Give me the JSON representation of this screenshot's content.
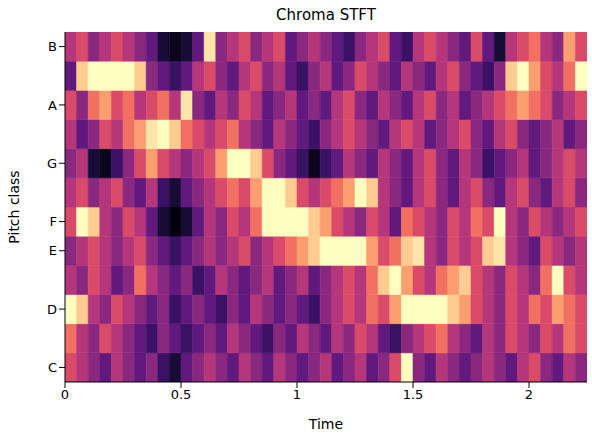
{
  "chart_data": {
    "type": "heatmap",
    "title": "Chroma STFT",
    "xlabel": "Time",
    "ylabel": "Pitch class",
    "color": "magma",
    "color_range": [
      0,
      1
    ],
    "x": [
      0,
      0.05,
      0.1,
      0.15,
      0.2,
      0.25,
      0.3,
      0.35,
      0.4,
      0.45,
      0.5,
      0.55,
      0.6,
      0.65,
      0.7,
      0.75,
      0.8,
      0.85,
      0.9,
      0.95,
      1,
      1.05,
      1.1,
      1.15,
      1.2,
      1.25,
      1.3,
      1.35,
      1.4,
      1.45,
      1.5,
      1.55,
      1.6,
      1.65,
      1.7,
      1.75,
      1.8,
      1.85,
      1.9,
      1.95,
      2,
      2.05,
      2.1,
      2.15,
      2.2
    ],
    "y": [
      0,
      1,
      2,
      3,
      4,
      5,
      6,
      7,
      8,
      9,
      10,
      11
    ],
    "xlim": [
      0,
      2.25
    ],
    "ylim": [
      -0.5,
      11.5
    ],
    "xticks": [
      0,
      0.5,
      1,
      1.5,
      2
    ],
    "yticks": [
      {
        "value": 0,
        "label": "C"
      },
      {
        "value": 2,
        "label": "D"
      },
      {
        "value": 4,
        "label": "E"
      },
      {
        "value": 5,
        "label": "F"
      },
      {
        "value": 7,
        "label": "G"
      },
      {
        "value": 9,
        "label": "A"
      },
      {
        "value": 11,
        "label": "B"
      }
    ],
    "cells": [
      [
        0.6,
        0.5,
        0.4,
        0.3,
        0.5,
        0.4,
        0.3,
        0.4,
        0.2,
        0.1,
        0.3,
        0.4,
        0.5,
        0.4,
        0.3,
        0.5,
        0.4,
        0.3,
        0.5,
        0.4,
        0.3,
        0.4,
        0.5,
        0.3,
        0.4,
        0.5,
        0.3,
        0.4,
        0.6,
        1,
        0.4,
        0.3,
        0.5,
        0.4,
        0.3,
        0.4,
        0.5,
        0.4,
        0.3,
        0.5,
        0.6,
        0.4,
        0.3,
        0.5,
        0.4
      ],
      [
        0.7,
        0.5,
        0.4,
        0.6,
        0.5,
        0.4,
        0.3,
        0.2,
        0.4,
        0.3,
        0.2,
        0.3,
        0.4,
        0.3,
        0.5,
        0.4,
        0.3,
        0.2,
        0.4,
        0.3,
        0.5,
        0.4,
        0.3,
        0.5,
        0.4,
        0.6,
        0.5,
        0.3,
        0.2,
        0.4,
        0.5,
        0.6,
        0.7,
        0.5,
        0.4,
        0.3,
        0.5,
        0.4,
        0.6,
        0.5,
        0.4,
        0.6,
        0.5,
        0.7,
        0.6
      ],
      [
        1,
        0.9,
        0.5,
        0.4,
        0.6,
        0.5,
        0.4,
        0.3,
        0.4,
        0.2,
        0.3,
        0.4,
        0.3,
        0.2,
        0.4,
        0.3,
        0.5,
        0.4,
        0.3,
        0.4,
        0.3,
        0.2,
        0.4,
        0.5,
        0.6,
        0.5,
        0.7,
        0.6,
        0.8,
        1,
        1,
        1,
        1,
        0.9,
        0.8,
        0.6,
        0.5,
        0.4,
        0.6,
        0.5,
        0.7,
        0.6,
        0.8,
        0.7,
        0.6
      ],
      [
        0.5,
        0.4,
        0.6,
        0.5,
        0.3,
        0.4,
        0.7,
        0.5,
        0.4,
        0.3,
        0.4,
        0.2,
        0.3,
        0.5,
        0.4,
        0.3,
        0.4,
        0.5,
        0.3,
        0.4,
        0.5,
        0.3,
        0.4,
        0.5,
        0.6,
        0.5,
        0.7,
        0.9,
        1,
        0.8,
        0.6,
        0.5,
        0.7,
        0.8,
        0.9,
        0.6,
        0.5,
        0.4,
        0.6,
        0.5,
        0.4,
        0.7,
        1,
        0.6,
        0.5
      ],
      [
        0.4,
        0.5,
        0.6,
        0.5,
        0.4,
        0.5,
        0.6,
        0.4,
        0.3,
        0.2,
        0.3,
        0.4,
        0.5,
        0.4,
        0.5,
        0.6,
        0.4,
        0.5,
        0.6,
        0.7,
        0.8,
        0.9,
        1,
        1,
        1,
        1,
        0.8,
        0.6,
        0.7,
        0.9,
        0.95,
        0.5,
        0.4,
        0.6,
        0.5,
        0.6,
        0.9,
        0.95,
        0.5,
        0.4,
        0.3,
        0.6,
        0.5,
        0.4,
        0.5
      ],
      [
        0.6,
        1,
        0.9,
        0.5,
        0.4,
        0.6,
        0.5,
        0.3,
        0.1,
        0.02,
        0.1,
        0.3,
        0.5,
        0.4,
        0.6,
        0.5,
        0.7,
        1,
        1,
        1,
        1,
        0.9,
        0.8,
        0.6,
        0.5,
        0.4,
        0.6,
        0.5,
        0.3,
        0.7,
        0.6,
        0.5,
        0.4,
        0.6,
        0.5,
        0.7,
        0.6,
        1,
        0.5,
        0.4,
        0.6,
        0.5,
        0.4,
        0.5,
        0.6
      ],
      [
        0.5,
        0.6,
        0.4,
        0.5,
        0.6,
        0.4,
        0.3,
        0.5,
        0.2,
        0.1,
        0.3,
        0.4,
        0.5,
        0.6,
        0.7,
        0.6,
        0.8,
        1,
        1,
        0.9,
        0.6,
        0.5,
        0.6,
        0.7,
        0.8,
        1,
        0.9,
        0.5,
        0.4,
        0.3,
        0.5,
        0.6,
        0.4,
        0.3,
        0.5,
        0.6,
        0.4,
        0.3,
        0.5,
        0.6,
        0.4,
        0.3,
        0.5,
        0.6,
        0.4
      ],
      [
        0.4,
        0.5,
        0.1,
        0.05,
        0.2,
        0.4,
        0.6,
        0.8,
        0.6,
        0.5,
        0.4,
        0.5,
        0.6,
        0.8,
        1,
        1,
        0.9,
        0.6,
        0.4,
        0.3,
        0.2,
        0.05,
        0.2,
        0.3,
        0.5,
        0.4,
        0.3,
        0.5,
        0.4,
        0.3,
        0.5,
        0.6,
        0.4,
        0.3,
        0.5,
        0.4,
        0.2,
        0.3,
        0.4,
        0.5,
        0.3,
        0.4,
        0.5,
        0.6,
        0.5
      ],
      [
        0.5,
        0.3,
        0.4,
        0.6,
        0.5,
        0.7,
        0.8,
        0.95,
        1,
        0.9,
        0.7,
        0.6,
        0.5,
        0.6,
        0.7,
        0.5,
        0.4,
        0.3,
        0.5,
        0.4,
        0.3,
        0.2,
        0.4,
        0.5,
        0.6,
        0.5,
        0.4,
        0.3,
        0.5,
        0.6,
        0.5,
        0.3,
        0.4,
        0.5,
        0.6,
        0.4,
        0.3,
        0.5,
        0.6,
        0.4,
        0.3,
        0.4,
        0.5,
        0.3,
        0.4
      ],
      [
        0.6,
        0.4,
        0.7,
        0.8,
        0.6,
        0.7,
        0.5,
        0.6,
        0.7,
        0.5,
        0.95,
        0.4,
        0.3,
        0.5,
        0.4,
        0.6,
        0.5,
        0.3,
        0.4,
        0.5,
        0.3,
        0.4,
        0.3,
        0.5,
        0.6,
        0.4,
        0.3,
        0.5,
        0.4,
        0.3,
        0.5,
        0.6,
        0.4,
        0.5,
        0.3,
        0.4,
        0.5,
        0.6,
        0.7,
        0.8,
        0.7,
        0.6,
        0.4,
        0.5,
        0.6
      ],
      [
        0.3,
        0.9,
        1,
        1,
        1,
        1,
        0.9,
        0.4,
        0.3,
        0.2,
        0.3,
        0.5,
        0.6,
        0.4,
        0.3,
        0.5,
        0.6,
        0.4,
        0.5,
        0.3,
        0.2,
        0.4,
        0.5,
        0.3,
        0.4,
        0.6,
        0.5,
        0.4,
        0.3,
        0.5,
        0.4,
        0.3,
        0.5,
        0.6,
        0.4,
        0.3,
        0.2,
        0.4,
        0.9,
        1,
        0.8,
        0.6,
        0.5,
        0.7,
        1
      ],
      [
        0.5,
        0.6,
        0.4,
        0.5,
        0.6,
        0.5,
        0.4,
        0.3,
        0.1,
        0.05,
        0.1,
        0.3,
        0.95,
        0.4,
        0.5,
        0.6,
        0.4,
        0.5,
        0.6,
        0.3,
        0.4,
        0.5,
        0.4,
        0.3,
        0.2,
        0.4,
        0.5,
        0.6,
        0.3,
        0.2,
        0.5,
        0.6,
        0.5,
        0.4,
        0.3,
        0.6,
        0.3,
        0.1,
        0.5,
        0.6,
        0.7,
        0.5,
        0.4,
        0.8,
        0.6
      ]
    ]
  }
}
